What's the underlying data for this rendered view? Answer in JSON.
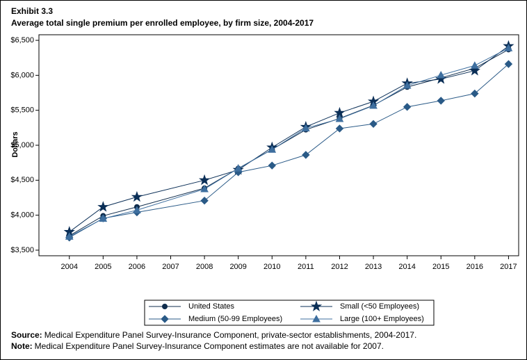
{
  "chart_data": {
    "type": "line",
    "title": "Exhibit 3.3",
    "subtitle": "Average total single premium per enrolled employee, by firm size, 2004-2017",
    "y_label": "Dollars",
    "x": [
      2004,
      2005,
      2006,
      2008,
      2009,
      2010,
      2011,
      2012,
      2013,
      2014,
      2015,
      2016,
      2017
    ],
    "xlim": [
      2003.1,
      2017.3
    ],
    "xticks": [
      2004,
      2005,
      2006,
      2007,
      2008,
      2009,
      2010,
      2011,
      2012,
      2013,
      2014,
      2015,
      2016,
      2017
    ],
    "ylim": [
      3420,
      6580
    ],
    "yticks": [
      {
        "value": 3500,
        "label": "$3,500"
      },
      {
        "value": 4000,
        "label": "$4,000"
      },
      {
        "value": 4500,
        "label": "$4,500"
      },
      {
        "value": 5000,
        "label": "$5,000"
      },
      {
        "value": 5500,
        "label": "$5,500"
      },
      {
        "value": 6000,
        "label": "$6,000"
      },
      {
        "value": 6500,
        "label": "$6,500"
      }
    ],
    "series": [
      {
        "name": "United States",
        "color": "#0f2c4c",
        "marker": "circle",
        "values": [
          3705,
          3991,
          4118,
          4386,
          4669,
          4940,
          5222,
          5384,
          5571,
          5832,
          5963,
          6101,
          6368
        ]
      },
      {
        "name": "Small (<50 Employees)",
        "color": "#0b2f57",
        "marker": "star",
        "values": [
          3761,
          4118,
          4261,
          4500,
          4648,
          4969,
          5263,
          5463,
          5626,
          5886,
          5947,
          6066,
          6418
        ]
      },
      {
        "name": "Medium (50-99 Employees)",
        "color": "#2a5a87",
        "marker": "diamond",
        "values": [
          3680,
          3955,
          4041,
          4208,
          4614,
          4710,
          4862,
          5239,
          5305,
          5548,
          5637,
          5739,
          6161
        ]
      },
      {
        "name": "Large (100+ Employees)",
        "color": "#3e6f9f",
        "marker": "triangle",
        "values": [
          3695,
          3951,
          4072,
          4374,
          4669,
          4938,
          5244,
          5378,
          5566,
          5853,
          6003,
          6140,
          6389
        ]
      }
    ],
    "notes": [
      {
        "label": "Source:",
        "text": "Medical Expenditure Panel Survey-Insurance Component, private-sector establishments, 2004-2017."
      },
      {
        "label": "Note:",
        "text": "Medical Expenditure Panel Survey-Insurance Component estimates are not available for 2007."
      }
    ]
  }
}
